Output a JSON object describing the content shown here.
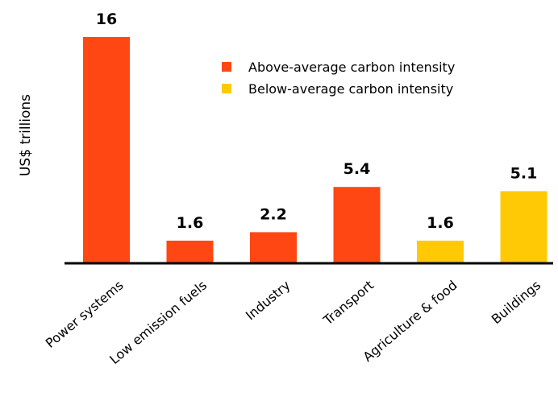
{
  "chart_data": {
    "type": "bar",
    "title": "",
    "xlabel": "",
    "ylabel": "US$ trillions",
    "categories": [
      "Power systems",
      "Low emission fuels",
      "Industry",
      "Transport",
      "Agriculture & food",
      "Buildings"
    ],
    "values": [
      16,
      1.6,
      2.2,
      5.4,
      1.6,
      5.1
    ],
    "value_labels": [
      "16",
      "1.6",
      "2.2",
      "5.4",
      "1.6",
      "5.1"
    ],
    "groups": [
      "above",
      "above",
      "above",
      "above",
      "below",
      "below"
    ],
    "ylim": [
      0,
      16
    ],
    "grid": false,
    "legend_position": "top-right",
    "legend": [
      {
        "key": "above",
        "label": "Above-average carbon intensity",
        "color": "#FF4713"
      },
      {
        "key": "below",
        "label": "Below-average carbon intensity",
        "color": "#FFCA05"
      }
    ]
  }
}
